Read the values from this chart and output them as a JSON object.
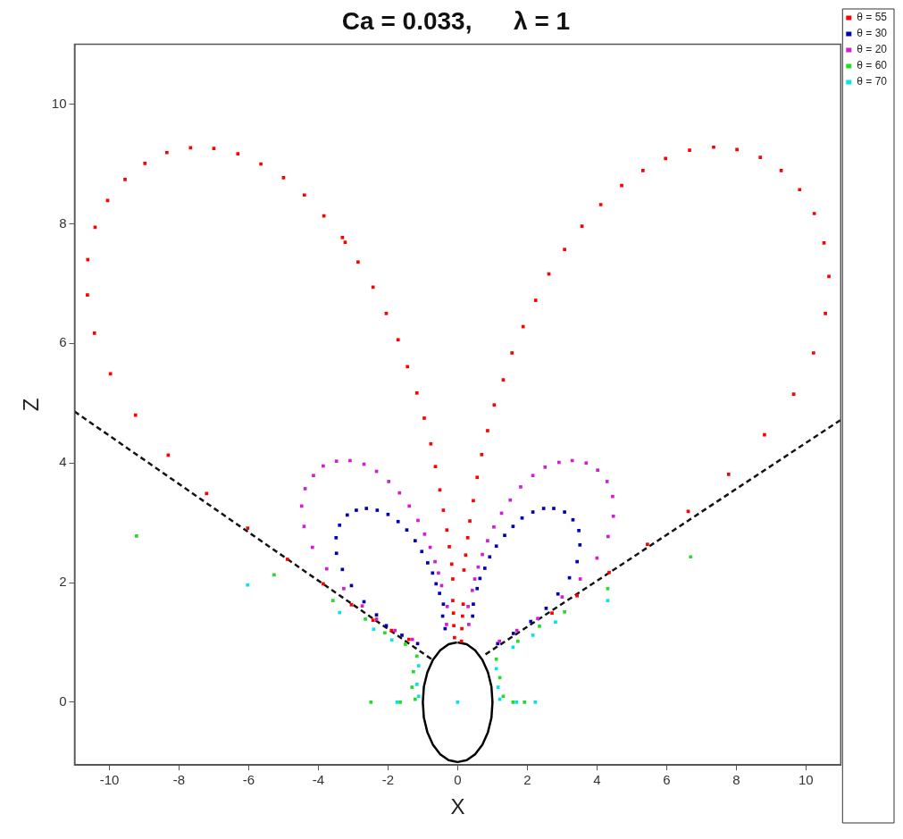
{
  "chart_data": {
    "type": "scatter",
    "title": "Ca = 0.033,      λ = 1",
    "xlabel": "X",
    "ylabel": "Z",
    "xlim": [
      -11,
      11
    ],
    "ylim": [
      -1.05,
      11
    ],
    "xticks": [
      -10,
      -8,
      -6,
      -4,
      -2,
      0,
      2,
      4,
      6,
      8,
      10
    ],
    "yticks": [
      0,
      2,
      4,
      6,
      8,
      10
    ],
    "grid": false,
    "legend": "top right",
    "marker": "square",
    "series": [
      {
        "type": "line",
        "color": "#000000",
        "marker": "none",
        "line_style": "solid",
        "x": [
          0,
          0.26,
          0.5,
          0.71,
          0.87,
          0.97,
          1,
          0.97,
          0.87,
          0.71,
          0.5,
          0.26,
          0,
          -0.26,
          -0.5,
          -0.71,
          -0.87,
          -0.97,
          -1,
          -0.97,
          -0.87,
          -0.71,
          -0.5,
          -0.26,
          -0.02
        ],
        "values": [
          1,
          0.97,
          0.87,
          0.71,
          0.5,
          0.26,
          0,
          -0.26,
          -0.5,
          -0.71,
          -0.87,
          -0.97,
          -1,
          -0.97,
          -0.87,
          -0.71,
          -0.5,
          -0.26,
          0,
          0.26,
          0.5,
          0.71,
          0.87,
          0.97,
          1
        ]
      },
      {
        "type": "line",
        "color": "#141414",
        "marker": "none",
        "line_style": "dashed",
        "x": [
          -11,
          -0.75,
          0,
          0.8,
          11
        ],
        "values": [
          4.86,
          0.72,
          null,
          0.8,
          4.72
        ]
      },
      {
        "name": "θ = 55",
        "color": "#ff0000",
        "x": [
          -7.67,
          -7.0,
          -6.31,
          -5.65,
          -5.0,
          -4.4,
          -3.84,
          -3.31,
          -3.23,
          -2.86,
          -2.43,
          -2.05,
          -1.71,
          -1.44,
          -1.17,
          -0.96,
          -0.77,
          -0.64,
          -0.51,
          -0.41,
          -0.31,
          -0.24,
          -0.17,
          -0.14,
          -0.14,
          -0.12,
          -0.11,
          -0.09,
          -8.35,
          -8.98,
          -9.55,
          -10.05,
          -10.41,
          -10.62,
          -10.63,
          -10.43,
          -9.97,
          -9.25,
          -8.31,
          -7.21,
          -6.03,
          -4.89,
          -3.86,
          -3.05,
          -2.43,
          -1.9,
          -1.4,
          7.35,
          8.02,
          8.69,
          9.29,
          9.82,
          10.24,
          10.52,
          10.66,
          10.56,
          10.22,
          9.65,
          8.81,
          7.78,
          6.62,
          5.45,
          4.35,
          3.43,
          2.71,
          6.66,
          5.97,
          5.32,
          4.71,
          4.11,
          3.57,
          3.07,
          2.62,
          2.24,
          1.88,
          1.56,
          1.31,
          1.05,
          0.86,
          0.69,
          0.56,
          0.45,
          0.35,
          0.29,
          0.23,
          0.18,
          0.16,
          0.14,
          0.12,
          0.11
        ],
        "values": [
          9.27,
          9.26,
          9.17,
          9.0,
          8.77,
          8.48,
          8.13,
          7.77,
          7.69,
          7.36,
          6.94,
          6.5,
          6.06,
          5.61,
          5.17,
          4.75,
          4.32,
          3.94,
          3.55,
          3.21,
          2.88,
          2.6,
          2.31,
          2.06,
          1.7,
          1.49,
          1.28,
          1.08,
          9.19,
          9.01,
          8.74,
          8.39,
          7.94,
          7.4,
          6.81,
          6.17,
          5.49,
          4.8,
          4.13,
          3.49,
          2.91,
          2.39,
          1.98,
          1.63,
          1.37,
          1.2,
          1.05,
          9.28,
          9.24,
          9.11,
          8.89,
          8.57,
          8.17,
          7.68,
          7.12,
          6.5,
          5.84,
          5.15,
          4.47,
          3.81,
          3.19,
          2.64,
          2.17,
          1.78,
          1.49,
          9.23,
          9.09,
          8.89,
          8.64,
          8.32,
          7.96,
          7.57,
          7.16,
          6.72,
          6.28,
          5.84,
          5.39,
          4.97,
          4.54,
          4.14,
          3.76,
          3.37,
          3.03,
          2.75,
          2.46,
          2.21,
          1.64,
          1.44,
          1.23,
          1.02
        ]
      },
      {
        "name": "θ = 30",
        "color": "#0000b4",
        "x": [
          -2.91,
          -2.62,
          -2.31,
          -2.0,
          -1.71,
          -1.46,
          -1.22,
          -1.03,
          -0.86,
          -0.72,
          -0.62,
          -0.52,
          -3.17,
          -3.39,
          -3.49,
          -3.48,
          -3.31,
          -3.05,
          -2.69,
          -2.33,
          -2.05,
          -1.6,
          -1.15,
          -0.41,
          -0.43,
          -0.36,
          2.47,
          2.76,
          3.07,
          3.31,
          3.48,
          3.51,
          3.43,
          3.21,
          2.88,
          2.54,
          2.16,
          1.85,
          1.59,
          1.35,
          1.11,
          0.92,
          0.78,
          0.64,
          0.56,
          0.45,
          0.43,
          2.1,
          1.6,
          1.15
        ],
        "values": [
          3.21,
          3.24,
          3.21,
          3.14,
          3.02,
          2.88,
          2.7,
          2.52,
          2.33,
          2.16,
          1.98,
          1.82,
          3.13,
          2.96,
          2.75,
          2.49,
          2.22,
          1.95,
          1.68,
          1.46,
          1.28,
          1.12,
          0.98,
          1.64,
          1.44,
          1.23,
          3.24,
          3.24,
          3.18,
          3.05,
          2.87,
          2.63,
          2.35,
          2.08,
          1.81,
          1.57,
          3.18,
          3.08,
          2.94,
          2.79,
          2.61,
          2.43,
          2.24,
          2.07,
          1.9,
          1.64,
          1.44,
          1.35,
          1.15,
          0.98
        ]
      },
      {
        "name": "θ = 20",
        "color": "#d21ed2",
        "x": [
          -3.48,
          -3.09,
          -2.69,
          -2.33,
          -1.98,
          -1.67,
          -1.39,
          -1.14,
          -0.95,
          -0.79,
          -0.65,
          -0.55,
          -0.46,
          -3.86,
          -4.14,
          -4.38,
          -4.48,
          -4.41,
          -4.17,
          -3.76,
          -3.27,
          -2.74,
          -2.33,
          -1.8,
          -1.3,
          -0.3,
          -0.32,
          2.91,
          3.29,
          3.69,
          4.02,
          4.29,
          4.45,
          4.47,
          4.32,
          4.0,
          3.52,
          3.0,
          2.51,
          2.16,
          1.81,
          1.51,
          1.26,
          1.04,
          0.86,
          0.71,
          0.59,
          0.49,
          0.42,
          2.3,
          1.7,
          1.2,
          0.3,
          0.32
        ],
        "values": [
          4.03,
          4.04,
          3.98,
          3.86,
          3.69,
          3.5,
          3.28,
          3.04,
          2.81,
          2.59,
          2.35,
          2.16,
          1.95,
          3.95,
          3.79,
          3.57,
          3.28,
          2.94,
          2.59,
          2.23,
          1.9,
          1.61,
          1.39,
          1.2,
          1.05,
          1.6,
          1.3,
          4.01,
          4.04,
          4.0,
          3.88,
          3.69,
          3.44,
          3.11,
          2.77,
          2.41,
          2.06,
          1.76,
          3.93,
          3.79,
          3.6,
          3.38,
          3.16,
          2.93,
          2.7,
          2.47,
          2.26,
          2.06,
          1.87,
          1.4,
          1.2,
          1.02,
          1.6,
          1.3
        ]
      },
      {
        "name": "θ = 60",
        "color": "#22dd22",
        "x": [
          -9.22,
          -5.27,
          -3.58,
          -2.65,
          -2.09,
          -1.5,
          -2.49,
          -1.17,
          -1.27,
          -1.31,
          -1.22,
          -1.65,
          6.69,
          4.31,
          3.07,
          2.35,
          1.73,
          1.11,
          1.21,
          1.31,
          1.59,
          1.92
        ],
        "values": [
          2.78,
          2.13,
          1.7,
          1.39,
          1.16,
          0.97,
          0,
          0.77,
          0.51,
          0.25,
          0.05,
          0,
          2.43,
          1.9,
          1.51,
          1.27,
          1.02,
          0.72,
          0.41,
          0.1,
          0,
          0
        ]
      },
      {
        "name": "θ = 70",
        "color": "#00e6e6",
        "x": [
          -6.03,
          -3.39,
          -2.41,
          -1.89,
          -1.12,
          -1.17,
          -1.12,
          -1.74,
          0,
          4.31,
          2.81,
          2.16,
          1.59,
          1.11,
          1.16,
          1.21,
          2.23,
          1.69
        ],
        "values": [
          1.96,
          1.5,
          1.22,
          1.04,
          0.61,
          0.3,
          0.1,
          0,
          0,
          1.7,
          1.34,
          1.12,
          0.92,
          0.56,
          0.25,
          0.05,
          0,
          0
        ]
      }
    ]
  }
}
